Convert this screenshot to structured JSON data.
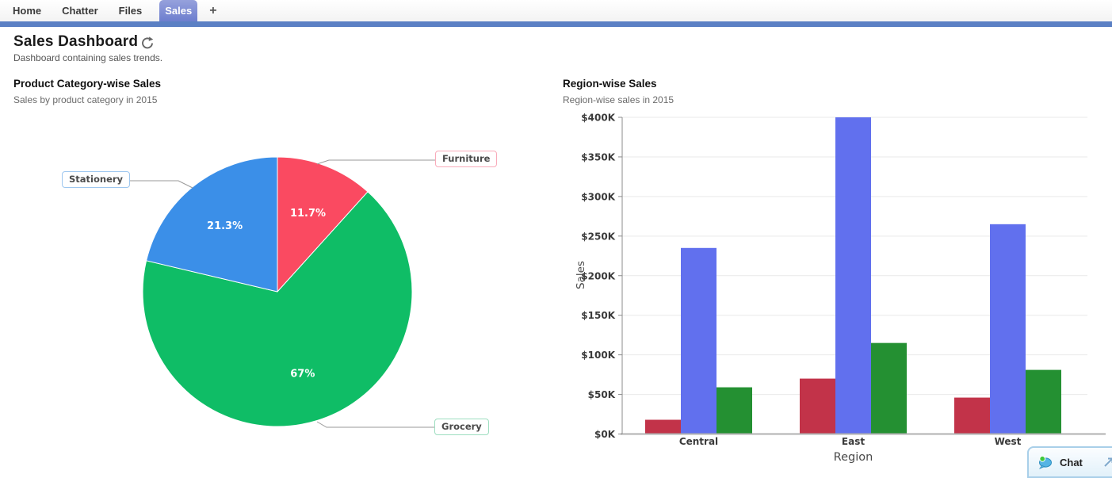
{
  "nav": {
    "tabs": [
      {
        "label": "Home",
        "active": false
      },
      {
        "label": "Chatter",
        "active": false
      },
      {
        "label": "Files",
        "active": false
      },
      {
        "label": "Sales",
        "active": true
      }
    ],
    "add_tab_label": "+"
  },
  "header": {
    "title": "Sales Dashboard",
    "subtitle": "Dashboard containing sales trends.",
    "refresh_icon": "refresh-circular-arrow"
  },
  "colors": {
    "tab_active_bg": "#6d7ece",
    "nav_underline": "#5b80c4",
    "pie_furniture": "#fa4a61",
    "pie_grocery": "#0fbd66",
    "pie_stationery": "#3b8fe8",
    "bar_red": "#c23349",
    "bar_purple": "#6170ee",
    "bar_green": "#249032",
    "gridline": "#e9e9e9",
    "axis": "#8c8c8c"
  },
  "chart_data": [
    {
      "type": "pie",
      "title": "Product Category-wise Sales",
      "subtitle": "Sales by product category in 2015",
      "start_angle_deg": 0,
      "direction": "clockwise",
      "slices": [
        {
          "label": "Furniture",
          "percent": 11.7,
          "display": "11.7%",
          "color": "#fa4a61"
        },
        {
          "label": "Grocery",
          "percent": 67.0,
          "display": "67%",
          "color": "#0fbd66"
        },
        {
          "label": "Stationery",
          "percent": 21.3,
          "display": "21.3%",
          "color": "#3b8fe8"
        }
      ]
    },
    {
      "type": "bar",
      "title": "Region-wise Sales",
      "subtitle": "Region-wise sales in 2015",
      "categories": [
        "Central",
        "East",
        "West"
      ],
      "series": [
        {
          "name": "series-red",
          "color": "#c23349",
          "values": [
            18,
            70,
            46
          ]
        },
        {
          "name": "series-purple",
          "color": "#6170ee",
          "values": [
            235,
            400,
            265
          ]
        },
        {
          "name": "series-green",
          "color": "#249032",
          "values": [
            59,
            115,
            81
          ]
        }
      ],
      "values_unit": "thousand USD",
      "xlabel": "Region",
      "ylabel": "Sales",
      "ylim": [
        0,
        400
      ],
      "ytick_step": 50,
      "yticks": [
        "$0K",
        "$50K",
        "$100K",
        "$150K",
        "$200K",
        "$250K",
        "$300K",
        "$350K",
        "$400K"
      ],
      "grid": true,
      "legend": "none"
    }
  ],
  "chat": {
    "label": "Chat"
  }
}
